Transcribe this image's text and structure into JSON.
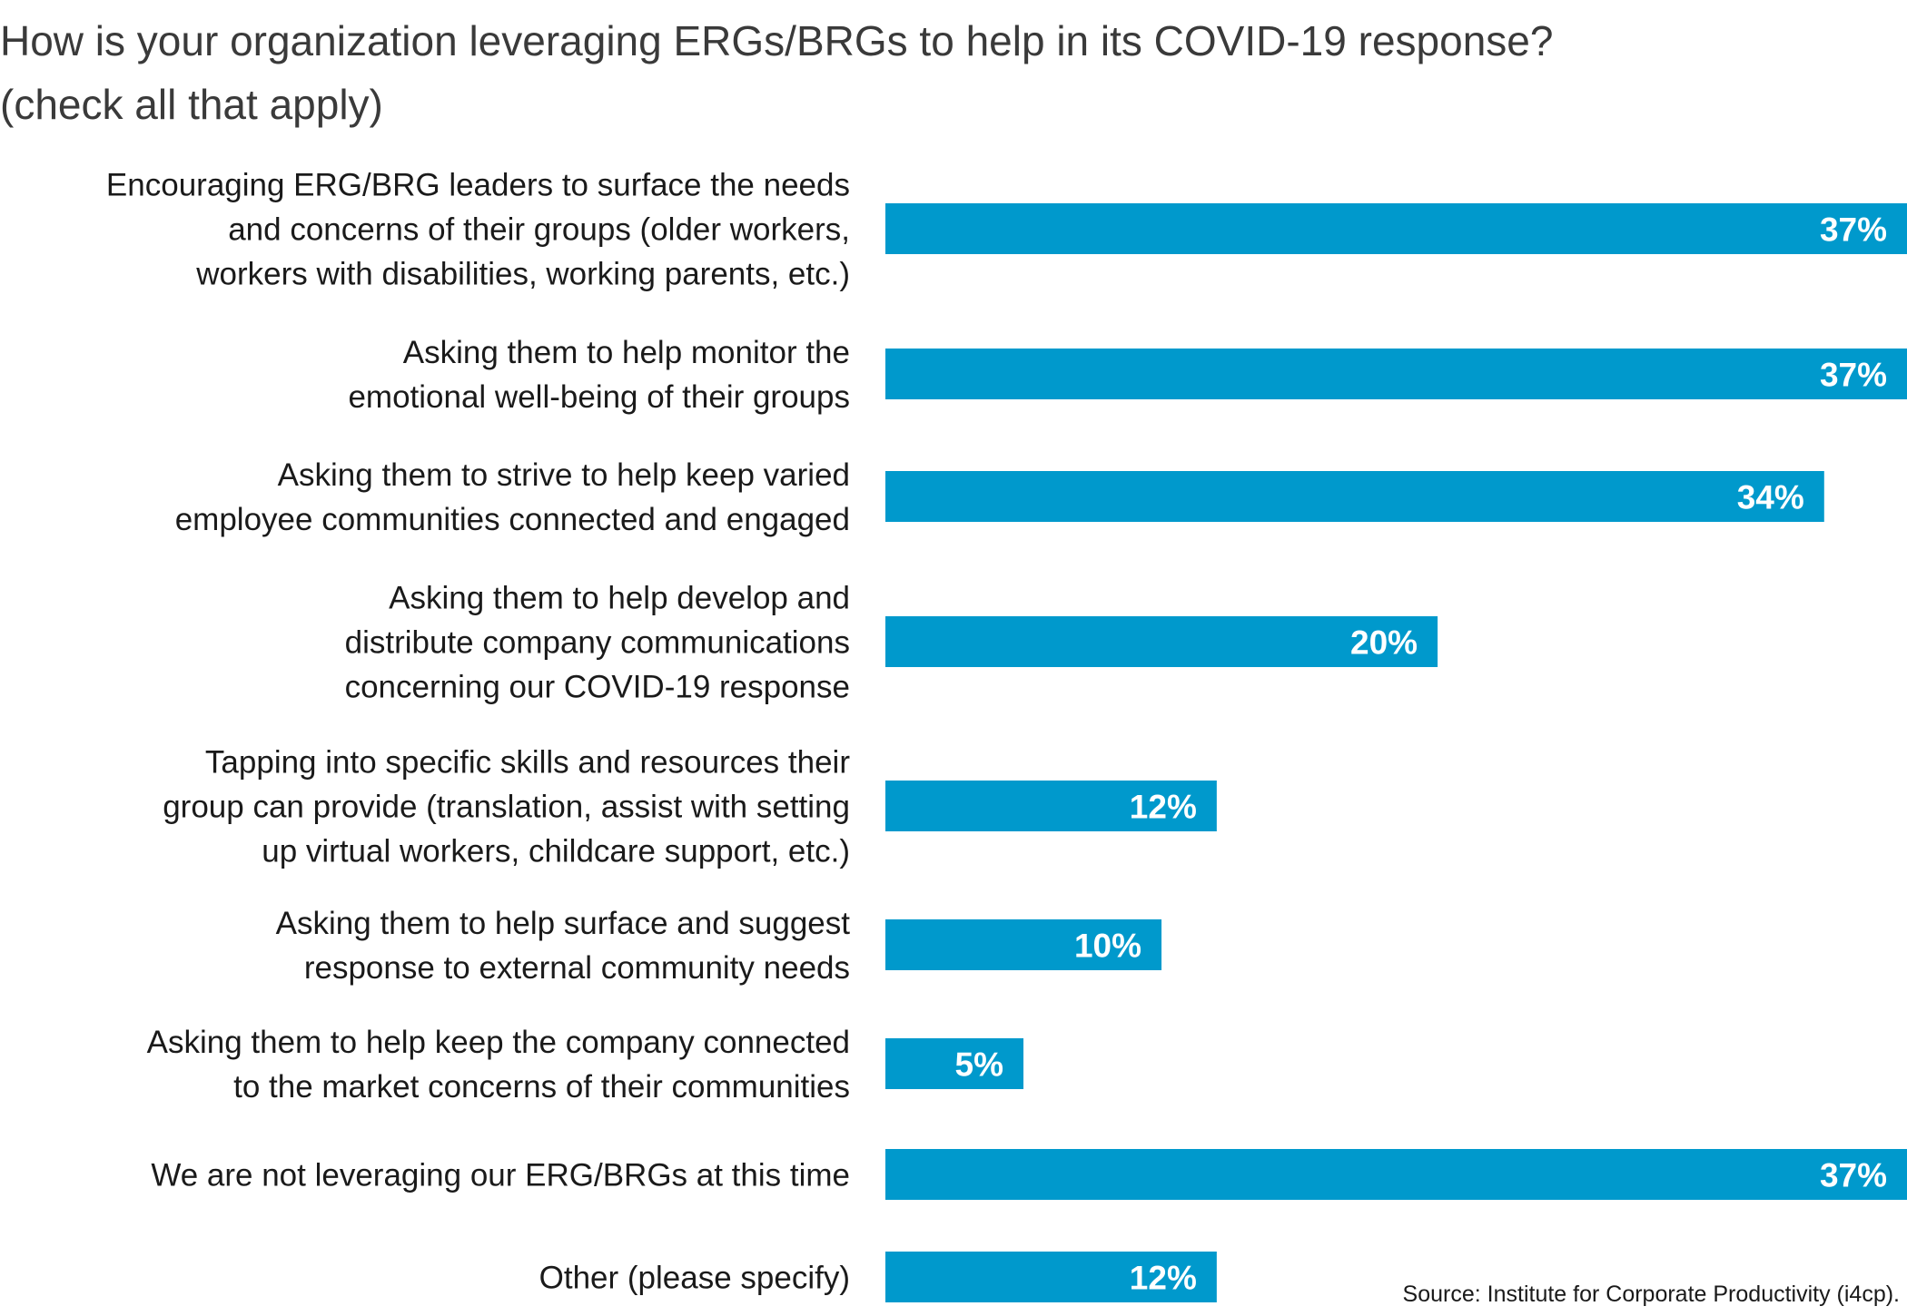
{
  "chart_data": {
    "type": "bar",
    "orientation": "horizontal",
    "title": "How is your organization leveraging ERGs/BRGs to help in its COVID-19 response?",
    "subtitle": "(check all that apply)",
    "categories": [
      [
        "Encouraging ERG/BRG leaders to surface the needs",
        "and concerns of their groups (older workers,",
        "workers with disabilities, working parents, etc.)"
      ],
      [
        "Asking them to help monitor the",
        "emotional well-being of their groups"
      ],
      [
        "Asking them to strive to help keep varied",
        "employee communities connected and engaged"
      ],
      [
        "Asking them to help develop and",
        "distribute company communications",
        "concerning our COVID-19 response"
      ],
      [
        "Tapping into specific skills and resources their",
        "group can provide (translation, assist with setting",
        "up virtual workers, childcare support, etc.)"
      ],
      [
        "Asking them to help surface and suggest",
        "response to external community needs"
      ],
      [
        "Asking them to help keep the company connected",
        "to the market concerns of their communities"
      ],
      [
        "We are not leveraging our ERG/BRGs at this time"
      ],
      [
        "Other (please specify)"
      ]
    ],
    "values": [
      37,
      37,
      34,
      20,
      12,
      10,
      5,
      37,
      12
    ],
    "data_labels": [
      "37%",
      "37%",
      "34%",
      "20%",
      "12%",
      "10%",
      "5%",
      "37%",
      "12%"
    ],
    "unit": "%",
    "xlim": [
      0,
      37
    ],
    "grid": false,
    "legend": "none",
    "bar_color": "#0099cc",
    "label_color": "#ffffff",
    "category_text_color": "#1a1a1a",
    "source": "Source: Institute for Corporate Productivity (i4cp)."
  }
}
